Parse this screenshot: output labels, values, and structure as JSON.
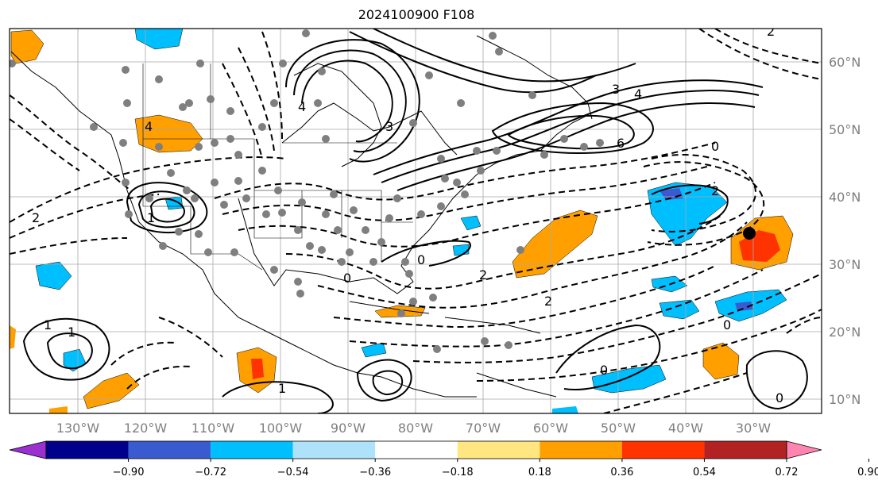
{
  "title": "2024100900 F108",
  "lon_labels": [
    "130°W",
    "120°W",
    "110°W",
    "100°W",
    "90°W",
    "80°W",
    "70°W",
    "60°W",
    "50°W",
    "40°W",
    "30°W"
  ],
  "lat_labels": [
    "60°N",
    "50°N",
    "40°N",
    "30°N",
    "20°N",
    "10°N"
  ],
  "colorbar": {
    "labels": [
      "−0.90",
      "−0.72",
      "−0.54",
      "−0.36",
      "−0.18",
      "0.18",
      "0.36",
      "0.54",
      "0.72",
      "0.90"
    ],
    "colors": [
      "#9b30d0",
      "#00008b",
      "#3a5bd0",
      "#00bfff",
      "#ade2fa",
      "#ffffff",
      "#ffe680",
      "#ffa000",
      "#ff3300",
      "#b22222",
      "#ff85b0"
    ]
  },
  "contour_labels": [
    {
      "text": "2"
    },
    {
      "text": "4"
    },
    {
      "text": "3"
    },
    {
      "text": "6"
    },
    {
      "text": "4"
    },
    {
      "text": "3"
    },
    {
      "text": "2"
    },
    {
      "text": "0"
    },
    {
      "text": "1"
    },
    {
      "text": "2"
    },
    {
      "text": "2"
    },
    {
      "text": "0"
    },
    {
      "text": "1"
    },
    {
      "text": "0"
    },
    {
      "text": "1"
    },
    {
      "text": "0"
    },
    {
      "text": "2"
    },
    {
      "text": "0"
    },
    {
      "text": "0"
    },
    {
      "text": "4"
    },
    {
      "text": "1"
    }
  ],
  "shading_colors": {
    "orange": "#ffa000",
    "red": "#ff3300",
    "lightblue": "#00bfff",
    "blue": "#3a5bd0"
  },
  "marker_label": "storm-center"
}
